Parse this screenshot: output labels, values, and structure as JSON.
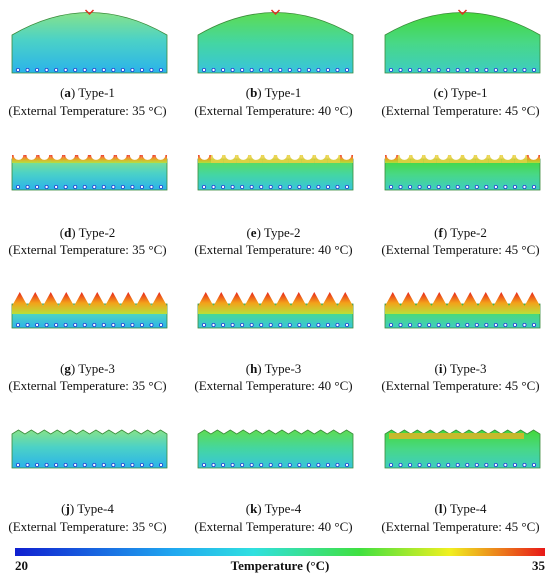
{
  "panels": [
    {
      "caption": [
        "(",
        "a",
        ") Type-1"
      ],
      "condition": "(External Temperature: 35 °C)"
    },
    {
      "caption": [
        "(",
        "b",
        ") Type-1"
      ],
      "condition": "(External Temperature: 40 °C)"
    },
    {
      "caption": [
        "(",
        "c",
        ") Type-1"
      ],
      "condition": "(External Temperature: 45 °C)"
    },
    {
      "caption": [
        "(",
        "d",
        ") Type-2"
      ],
      "condition": "(External Temperature: 35 °C)"
    },
    {
      "caption": [
        "(",
        "e",
        ") Type-2"
      ],
      "condition": "(External Temperature: 40 °C)"
    },
    {
      "caption": [
        "(",
        "f",
        ") Type-2"
      ],
      "condition": "(External Temperature: 45 °C)"
    },
    {
      "caption": [
        "(",
        "g",
        ") Type-3"
      ],
      "condition": "(External Temperature: 35 °C)"
    },
    {
      "caption": [
        "(",
        "h",
        ") Type-3"
      ],
      "condition": "(External Temperature: 40 °C)"
    },
    {
      "caption": [
        "(",
        "i",
        ") Type-3"
      ],
      "condition": "(External Temperature: 45 °C)"
    },
    {
      "caption": [
        "(",
        "j",
        ") Type-4"
      ],
      "condition": "(External Temperature: 35 °C)"
    },
    {
      "caption": [
        "(",
        "k",
        ") Type-4"
      ],
      "condition": "(External Temperature: 40 °C)"
    },
    {
      "caption": [
        "(",
        "l",
        ") Type-4"
      ],
      "condition": "(External Temperature: 45 °C)"
    }
  ],
  "colorbar": {
    "label": "Temperature (°C)",
    "min": 20,
    "max": 35
  }
}
